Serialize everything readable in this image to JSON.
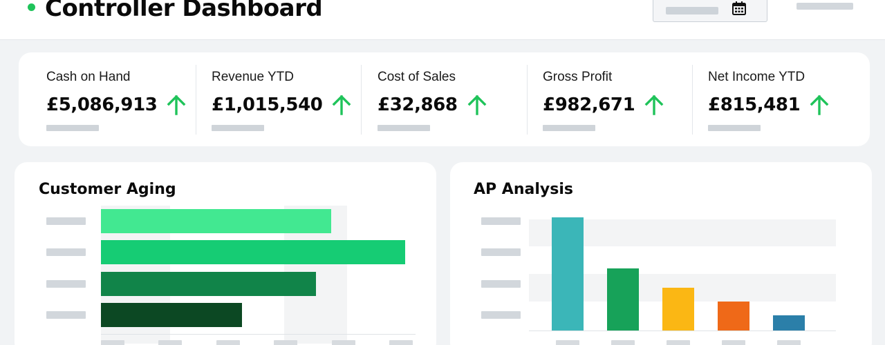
{
  "header": {
    "title": "Controller Dashboard",
    "status_color": "#1fc35a",
    "icons": [
      "status-dot",
      "calendar-icon"
    ]
  },
  "kpis": [
    {
      "label": "Cash on Hand",
      "value": "£5,086,913",
      "trend": "up"
    },
    {
      "label": "Revenue YTD",
      "value": "£1,015,540",
      "trend": "up"
    },
    {
      "label": "Cost of Sales",
      "value": "£32,868",
      "trend": "up"
    },
    {
      "label": "Gross Profit",
      "value": "£982,671",
      "trend": "up"
    },
    {
      "label": "Net Income YTD",
      "value": "£815,481",
      "trend": "up"
    }
  ],
  "trend_color": "#1fc35a",
  "panels": {
    "customer_aging": {
      "title": "Customer Aging"
    },
    "ap_analysis": {
      "title": "AP Analysis"
    }
  },
  "chart_data": [
    {
      "type": "bar",
      "orientation": "horizontal",
      "title": "Customer Aging",
      "categories": [
        "",
        "",
        "",
        ""
      ],
      "values": [
        337,
        445,
        314,
        206
      ],
      "colors": [
        "#42e891",
        "#16cc74",
        "#118449",
        "#0c4823"
      ],
      "xlim": [
        0,
        460
      ],
      "grid": false
    },
    {
      "type": "bar",
      "orientation": "vertical",
      "title": "AP Analysis",
      "categories": [
        "",
        "",
        "",
        "",
        ""
      ],
      "values": [
        164,
        90,
        62,
        42,
        22
      ],
      "colors": [
        "#3bb6b8",
        "#17a259",
        "#fbb714",
        "#ef6918",
        "#2b7fa9"
      ],
      "ylim": [
        0,
        164
      ],
      "grid": false
    }
  ]
}
